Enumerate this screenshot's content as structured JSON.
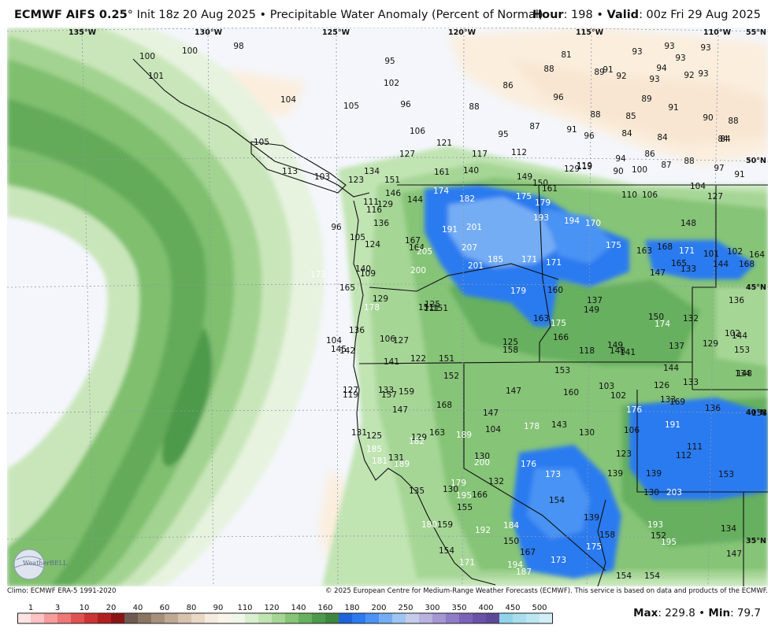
{
  "header": {
    "model": "ECMWF AIFS 0.25",
    "deg": "°",
    "init": " Init 18z 20 Aug 2025",
    "sep": " • ",
    "product": "Precipitable Water Anomaly (Percent of Normal)",
    "hour_label": "Hour",
    "hour_value": ": 198",
    "valid_label": "Valid",
    "valid_value": ": 00z Fri 29 Aug 2025"
  },
  "footer": {
    "climo": "Climo: ECMWF ERA-5 1991-2020",
    "copyright": "© 2025 European Centre for Medium-Range Weather Forecasts (ECMWF). This service is based on data and products of the ECMWF.",
    "max_label": "Max",
    "max_value": ": 229.8",
    "min_label": "Min",
    "min_value": ": 79.7"
  },
  "watermark": "WeatherBELL",
  "map": {
    "lon_labels": [
      "135°W",
      "130°W",
      "125°W",
      "120°W",
      "115°W",
      "110°W"
    ],
    "lat_labels": [
      "55°N",
      "50°N",
      "45°N",
      "40°N",
      "35°N"
    ],
    "colors": {
      "land_outline": "#111111",
      "grid": "#8d99ad",
      "plain": "#f4f6fb"
    },
    "values": [
      {
        "v": "98"
      },
      {
        "v": "100"
      },
      {
        "v": "100"
      },
      {
        "v": "101"
      },
      {
        "v": "95"
      },
      {
        "v": "81"
      },
      {
        "v": "93"
      },
      {
        "v": "93"
      },
      {
        "v": "93"
      },
      {
        "v": "93"
      },
      {
        "v": "94"
      },
      {
        "v": "88"
      },
      {
        "v": "89"
      },
      {
        "v": "91"
      },
      {
        "v": "92"
      },
      {
        "v": "93"
      },
      {
        "v": "93"
      },
      {
        "v": "92"
      },
      {
        "v": "102"
      },
      {
        "v": "86"
      },
      {
        "v": "104"
      },
      {
        "v": "105"
      },
      {
        "v": "96"
      },
      {
        "v": "96"
      },
      {
        "v": "88"
      },
      {
        "v": "89"
      },
      {
        "v": "91"
      },
      {
        "v": "106"
      },
      {
        "v": "87"
      },
      {
        "v": "91"
      },
      {
        "v": "88"
      },
      {
        "v": "85"
      },
      {
        "v": "90"
      },
      {
        "v": "88"
      },
      {
        "v": "95"
      },
      {
        "v": "96"
      },
      {
        "v": "84"
      },
      {
        "v": "84"
      },
      {
        "v": "84"
      },
      {
        "v": "105"
      },
      {
        "v": "121"
      },
      {
        "v": "127"
      },
      {
        "v": "117"
      },
      {
        "v": "112"
      },
      {
        "v": "119"
      },
      {
        "v": "94"
      },
      {
        "v": "86"
      },
      {
        "v": "87"
      },
      {
        "v": "88"
      },
      {
        "v": "84"
      },
      {
        "v": "90"
      },
      {
        "v": "97"
      },
      {
        "v": "91"
      },
      {
        "v": "100"
      },
      {
        "v": "113"
      },
      {
        "v": "103"
      },
      {
        "v": "134"
      },
      {
        "v": "161"
      },
      {
        "v": "140"
      },
      {
        "v": "149"
      },
      {
        "v": "129"
      },
      {
        "v": "119"
      },
      {
        "v": "104"
      },
      {
        "v": "123"
      },
      {
        "v": "151"
      },
      {
        "v": "150"
      },
      {
        "v": "174"
      },
      {
        "v": "182"
      },
      {
        "v": "175"
      },
      {
        "v": "161"
      },
      {
        "v": "110"
      },
      {
        "v": "106"
      },
      {
        "v": "127"
      },
      {
        "v": "111"
      },
      {
        "v": "129"
      },
      {
        "v": "146"
      },
      {
        "v": "179"
      },
      {
        "v": "144"
      },
      {
        "v": "116"
      },
      {
        "v": "193"
      },
      {
        "v": "194"
      },
      {
        "v": "170"
      },
      {
        "v": "148"
      },
      {
        "v": "96"
      },
      {
        "v": "105"
      },
      {
        "v": "136"
      },
      {
        "v": "191"
      },
      {
        "v": "201"
      },
      {
        "v": "124"
      },
      {
        "v": "167"
      },
      {
        "v": "164"
      },
      {
        "v": "207"
      },
      {
        "v": "175"
      },
      {
        "v": "163"
      },
      {
        "v": "168"
      },
      {
        "v": "171"
      },
      {
        "v": "101"
      },
      {
        "v": "102"
      },
      {
        "v": "205"
      },
      {
        "v": "201"
      },
      {
        "v": "185"
      },
      {
        "v": "171"
      },
      {
        "v": "171"
      },
      {
        "v": "165"
      },
      {
        "v": "133"
      },
      {
        "v": "144"
      },
      {
        "v": "164"
      },
      {
        "v": "200"
      },
      {
        "v": "147"
      },
      {
        "v": "168"
      },
      {
        "v": "173"
      },
      {
        "v": "165"
      },
      {
        "v": "140"
      },
      {
        "v": "109"
      },
      {
        "v": "129"
      },
      {
        "v": "178"
      },
      {
        "v": "179"
      },
      {
        "v": "160"
      },
      {
        "v": "137"
      },
      {
        "v": "136"
      },
      {
        "v": "111"
      },
      {
        "v": "125"
      },
      {
        "v": "151"
      },
      {
        "v": "151"
      },
      {
        "v": "149"
      },
      {
        "v": "150"
      },
      {
        "v": "132"
      },
      {
        "v": "136"
      },
      {
        "v": "106"
      },
      {
        "v": "125"
      },
      {
        "v": "163"
      },
      {
        "v": "175"
      },
      {
        "v": "174"
      },
      {
        "v": "144"
      },
      {
        "v": "104"
      },
      {
        "v": "127"
      },
      {
        "v": "158"
      },
      {
        "v": "166"
      },
      {
        "v": "149"
      },
      {
        "v": "148"
      },
      {
        "v": "137"
      },
      {
        "v": "142"
      },
      {
        "v": "129"
      },
      {
        "v": "102"
      },
      {
        "v": "153"
      },
      {
        "v": "145"
      },
      {
        "v": "148"
      },
      {
        "v": "118"
      },
      {
        "v": "141"
      },
      {
        "v": "141"
      },
      {
        "v": "122"
      },
      {
        "v": "151"
      },
      {
        "v": "153"
      },
      {
        "v": "144"
      },
      {
        "v": "134"
      },
      {
        "v": "152"
      },
      {
        "v": "103"
      },
      {
        "v": "133"
      },
      {
        "v": "127"
      },
      {
        "v": "133"
      },
      {
        "v": "147"
      },
      {
        "v": "160"
      },
      {
        "v": "102"
      },
      {
        "v": "126"
      },
      {
        "v": "119"
      },
      {
        "v": "157"
      },
      {
        "v": "159"
      },
      {
        "v": "133"
      },
      {
        "v": "169"
      },
      {
        "v": "168"
      },
      {
        "v": "176"
      },
      {
        "v": "136"
      },
      {
        "v": "138"
      },
      {
        "v": "147"
      },
      {
        "v": "147"
      },
      {
        "v": "178"
      },
      {
        "v": "143"
      },
      {
        "v": "191"
      },
      {
        "v": "104"
      },
      {
        "v": "106"
      },
      {
        "v": "131"
      },
      {
        "v": "125"
      },
      {
        "v": "129"
      },
      {
        "v": "163"
      },
      {
        "v": "189"
      },
      {
        "v": "130"
      },
      {
        "v": "111"
      },
      {
        "v": "130"
      },
      {
        "v": "185"
      },
      {
        "v": "182"
      },
      {
        "v": "123"
      },
      {
        "v": "112"
      },
      {
        "v": "131"
      },
      {
        "v": "181"
      },
      {
        "v": "189"
      },
      {
        "v": "176"
      },
      {
        "v": "173"
      },
      {
        "v": "139"
      },
      {
        "v": "153"
      },
      {
        "v": "135"
      },
      {
        "v": "200"
      },
      {
        "v": "179"
      },
      {
        "v": "132"
      },
      {
        "v": "139"
      },
      {
        "v": "130"
      },
      {
        "v": "203"
      },
      {
        "v": "130"
      },
      {
        "v": "195"
      },
      {
        "v": "166"
      },
      {
        "v": "154"
      },
      {
        "v": "155"
      },
      {
        "v": "139"
      },
      {
        "v": "193"
      },
      {
        "v": "134"
      },
      {
        "v": "180"
      },
      {
        "v": "159"
      },
      {
        "v": "184"
      },
      {
        "v": "192"
      },
      {
        "v": "158"
      },
      {
        "v": "152"
      },
      {
        "v": "150"
      },
      {
        "v": "175"
      },
      {
        "v": "195"
      },
      {
        "v": "147"
      },
      {
        "v": "154"
      },
      {
        "v": "167"
      },
      {
        "v": "173"
      },
      {
        "v": "154"
      },
      {
        "v": "154"
      },
      {
        "v": "171"
      },
      {
        "v": "194"
      },
      {
        "v": "187"
      }
    ]
  },
  "legend": {
    "ticks": [
      "1",
      "3",
      "10",
      "20",
      "40",
      "60",
      "80",
      "90",
      "110",
      "120",
      "140",
      "160",
      "180",
      "200",
      "250",
      "300",
      "350",
      "400",
      "450",
      "500"
    ],
    "colors": [
      "#fde3e3",
      "#fbc3c3",
      "#f59c9c",
      "#ee7777",
      "#e05252",
      "#cc3434",
      "#b21f1f",
      "#8a1414",
      "#6e5a50",
      "#8a7462",
      "#a68f7b",
      "#bfa994",
      "#d6c2ad",
      "#e8d8c5",
      "#f5ebde",
      "#fbf4ea",
      "#eef7e8",
      "#d9efcf",
      "#c1e4b3",
      "#a6d696",
      "#86c477",
      "#66b05e",
      "#4d9a4c",
      "#3e8640",
      "#1e63d9",
      "#2c7af0",
      "#4a93f4",
      "#74adf4",
      "#9ec5f3",
      "#c6cdeb",
      "#b9b2e0",
      "#a596d4",
      "#8f7cc6",
      "#7a63b7",
      "#6a52a8",
      "#5c4a96",
      "#8fd4ea",
      "#a9deee",
      "#bde6f1",
      "#d2eef6"
    ]
  }
}
